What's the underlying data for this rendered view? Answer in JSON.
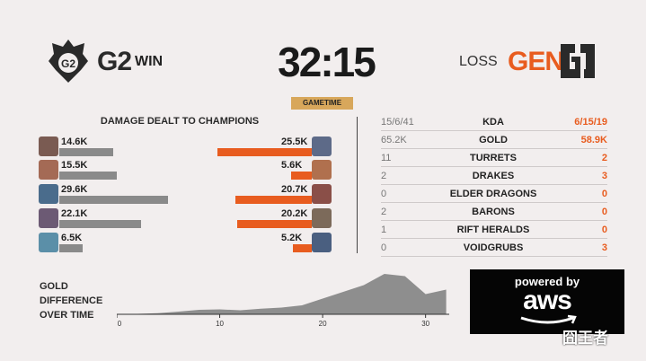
{
  "header": {
    "team_left": "G2",
    "result_left": "WIN",
    "time": "32:15",
    "time_label": "GAMETIME",
    "result_right": "LOSS",
    "team_right": "GEN"
  },
  "damage": {
    "title": "DAMAGE DEALT TO CHAMPIONS",
    "left_values": [
      "14.6K",
      "15.5K",
      "29.6K",
      "22.1K",
      "6.5K"
    ],
    "right_values": [
      "25.5K",
      "5.6K",
      "20.7K",
      "20.2K",
      "5.2K"
    ],
    "left_fractions": [
      0.48,
      0.51,
      0.97,
      0.73,
      0.21
    ],
    "right_fractions": [
      0.84,
      0.18,
      0.68,
      0.66,
      0.17
    ]
  },
  "stats": {
    "rows": [
      {
        "left": "15/6/41",
        "label": "KDA",
        "right": "6/15/19"
      },
      {
        "left": "65.2K",
        "label": "GOLD",
        "right": "58.9K"
      },
      {
        "left": "11",
        "label": "TURRETS",
        "right": "2"
      },
      {
        "left": "2",
        "label": "DRAKES",
        "right": "3"
      },
      {
        "left": "0",
        "label": "ELDER DRAGONS",
        "right": "0"
      },
      {
        "left": "2",
        "label": "BARONS",
        "right": "0"
      },
      {
        "left": "1",
        "label": "RIFT HERALDS",
        "right": "0"
      },
      {
        "left": "0",
        "label": "VOIDGRUBS",
        "right": "3"
      }
    ]
  },
  "gold_chart": {
    "label_line1": "GOLD",
    "label_line2": "DIFFERENCE",
    "label_line3": "OVER TIME"
  },
  "chart_data": {
    "type": "area",
    "x": [
      0,
      2,
      4,
      6,
      8,
      10,
      12,
      14,
      16,
      18,
      20,
      22,
      24,
      26,
      28,
      30,
      32
    ],
    "values": [
      0,
      0.2,
      0.5,
      1.2,
      2.0,
      2.2,
      1.8,
      2.5,
      3.0,
      4.0,
      7.0,
      10.0,
      13.0,
      18.0,
      17.0,
      9.0,
      11.0
    ],
    "tick_labels": [
      "0",
      "10",
      "20",
      "30"
    ],
    "tick_values": [
      0,
      10,
      20,
      30
    ],
    "xlim": [
      0,
      32.3
    ],
    "ylim": [
      0,
      20
    ]
  },
  "sponsor": {
    "powered": "powered by",
    "brand": "aws"
  },
  "watermark": "囧王者",
  "colors": {
    "g2_bar": "#8a8a8a",
    "gen_bar": "#e85c1f",
    "accent_gold": "#d8a75b",
    "background": "#f2eeee"
  }
}
